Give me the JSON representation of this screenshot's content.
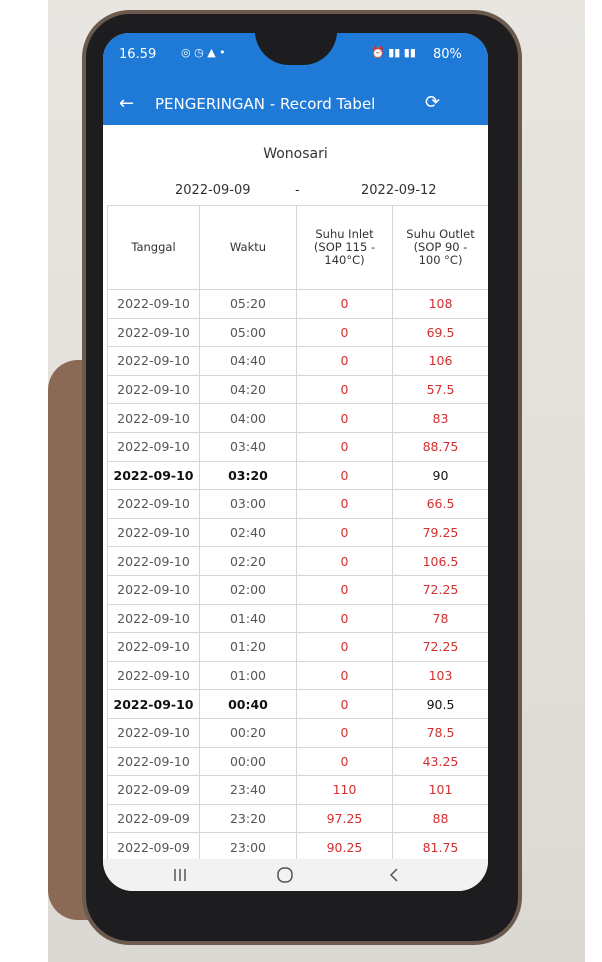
{
  "status_bar": {
    "time": "16.59",
    "battery": "80%"
  },
  "app_bar": {
    "title": "PENGERINGAN - Record Tabel"
  },
  "location": "Wonosari",
  "date_range": {
    "from": "2022-09-09",
    "separator": "-",
    "to": "2022-09-12"
  },
  "table": {
    "headers": [
      "Tanggal",
      "Waktu",
      "Suhu Inlet (SOP 115 - 140°C)",
      "Suhu Outlet (SOP 90 - 100 °C)"
    ],
    "rows": [
      {
        "cells": [
          "2022-09-10",
          "05:20",
          "0",
          "108"
        ],
        "colors": [
          "#555",
          "#555",
          "#d32f2f",
          "#d32f2f"
        ]
      },
      {
        "cells": [
          "2022-09-10",
          "05:00",
          "0",
          "69.5"
        ],
        "colors": [
          "#555",
          "#555",
          "#d32f2f",
          "#d32f2f"
        ]
      },
      {
        "cells": [
          "2022-09-10",
          "04:40",
          "0",
          "106"
        ],
        "colors": [
          "#555",
          "#555",
          "#d32f2f",
          "#d32f2f"
        ]
      },
      {
        "cells": [
          "2022-09-10",
          "04:20",
          "0",
          "57.5"
        ],
        "colors": [
          "#555",
          "#555",
          "#d32f2f",
          "#d32f2f"
        ]
      },
      {
        "cells": [
          "2022-09-10",
          "04:00",
          "0",
          "83"
        ],
        "colors": [
          "#555",
          "#555",
          "#d32f2f",
          "#d32f2f"
        ]
      },
      {
        "cells": [
          "2022-09-10",
          "03:40",
          "0",
          "88.75"
        ],
        "colors": [
          "#555",
          "#555",
          "#d32f2f",
          "#d32f2f"
        ]
      },
      {
        "cells": [
          "2022-09-10",
          "03:20",
          "0",
          "90"
        ],
        "colors": [
          "#111",
          "#111",
          "#d32f2f",
          "#111"
        ],
        "bold": true
      },
      {
        "cells": [
          "2022-09-10",
          "03:00",
          "0",
          "66.5"
        ],
        "colors": [
          "#555",
          "#555",
          "#d32f2f",
          "#d32f2f"
        ]
      },
      {
        "cells": [
          "2022-09-10",
          "02:40",
          "0",
          "79.25"
        ],
        "colors": [
          "#555",
          "#555",
          "#d32f2f",
          "#d32f2f"
        ]
      },
      {
        "cells": [
          "2022-09-10",
          "02:20",
          "0",
          "106.5"
        ],
        "colors": [
          "#555",
          "#555",
          "#d32f2f",
          "#d32f2f"
        ]
      },
      {
        "cells": [
          "2022-09-10",
          "02:00",
          "0",
          "72.25"
        ],
        "colors": [
          "#555",
          "#555",
          "#d32f2f",
          "#d32f2f"
        ]
      },
      {
        "cells": [
          "2022-09-10",
          "01:40",
          "0",
          "78"
        ],
        "colors": [
          "#555",
          "#555",
          "#d32f2f",
          "#d32f2f"
        ]
      },
      {
        "cells": [
          "2022-09-10",
          "01:20",
          "0",
          "72.25"
        ],
        "colors": [
          "#555",
          "#555",
          "#d32f2f",
          "#d32f2f"
        ]
      },
      {
        "cells": [
          "2022-09-10",
          "01:00",
          "0",
          "103"
        ],
        "colors": [
          "#555",
          "#555",
          "#d32f2f",
          "#d32f2f"
        ]
      },
      {
        "cells": [
          "2022-09-10",
          "00:40",
          "0",
          "90.5"
        ],
        "colors": [
          "#111",
          "#111",
          "#d32f2f",
          "#111"
        ],
        "bold": true
      },
      {
        "cells": [
          "2022-09-10",
          "00:20",
          "0",
          "78.5"
        ],
        "colors": [
          "#555",
          "#555",
          "#d32f2f",
          "#d32f2f"
        ]
      },
      {
        "cells": [
          "2022-09-10",
          "00:00",
          "0",
          "43.25"
        ],
        "colors": [
          "#555",
          "#555",
          "#d32f2f",
          "#d32f2f"
        ]
      },
      {
        "cells": [
          "2022-09-09",
          "23:40",
          "110",
          "101"
        ],
        "colors": [
          "#555",
          "#555",
          "#d32f2f",
          "#d32f2f"
        ]
      },
      {
        "cells": [
          "2022-09-09",
          "23:20",
          "97.25",
          "88"
        ],
        "colors": [
          "#555",
          "#555",
          "#d32f2f",
          "#d32f2f"
        ]
      },
      {
        "cells": [
          "2022-09-09",
          "23:00",
          "90.25",
          "81.75"
        ],
        "colors": [
          "#555",
          "#555",
          "#d32f2f",
          "#d32f2f"
        ]
      }
    ]
  }
}
